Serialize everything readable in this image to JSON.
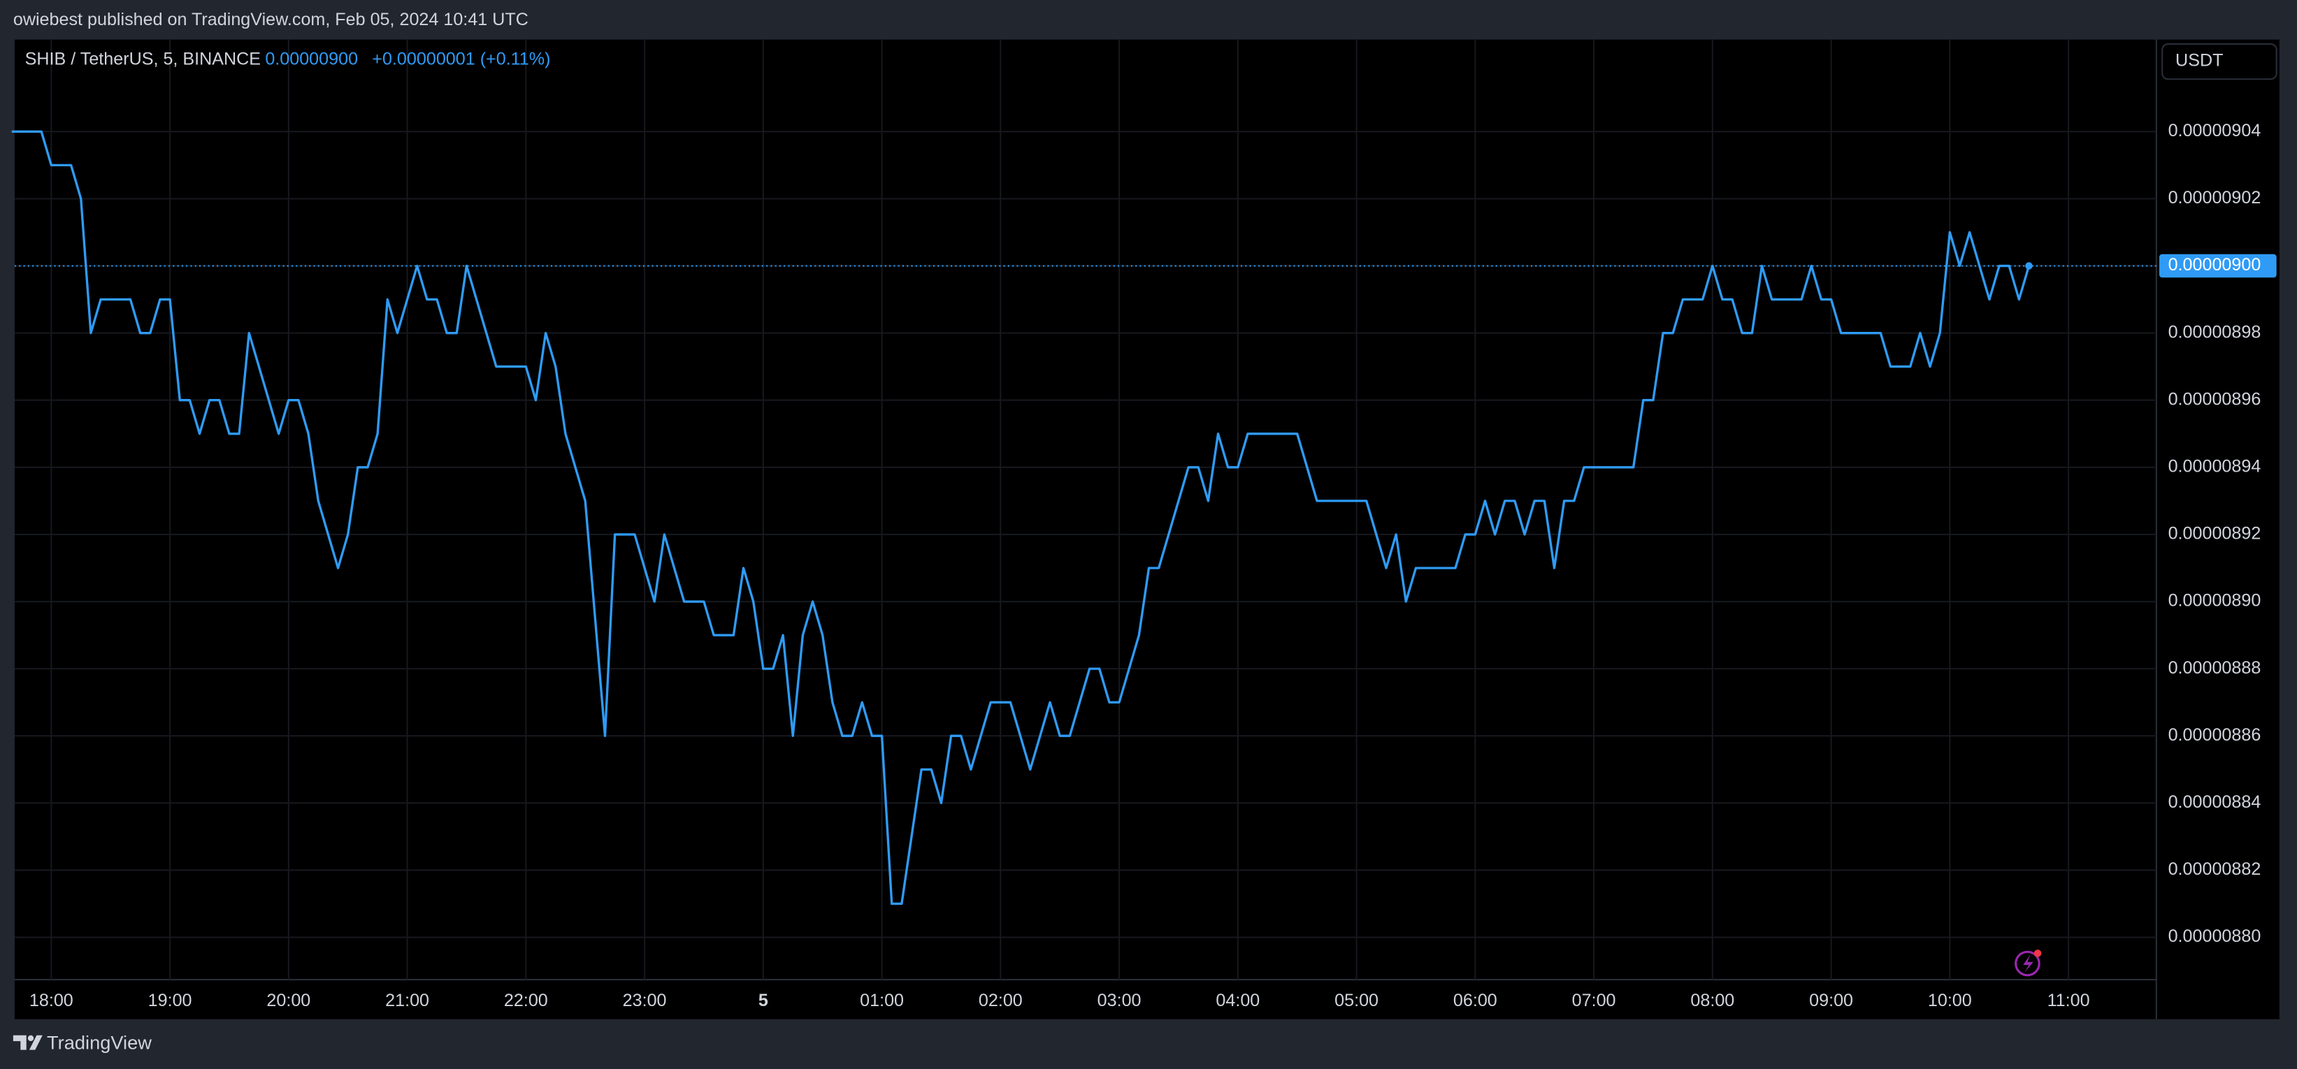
{
  "header": "owiebest published on TradingView.com, Feb 05, 2024 10:41 UTC",
  "footer": "TradingView",
  "currency": "USDT",
  "chart_data": {
    "type": "line",
    "title": "SHIB / TetherUS, 5, BINANCE",
    "last_price": {
      "value": 9e-06,
      "label": "0.00000900"
    },
    "change": "+0.00000001 (+0.11%)",
    "color": "#2f9bf6",
    "x": [
      "17:40",
      "17:55",
      "18:00",
      "18:10",
      "18:15",
      "18:20",
      "18:25",
      "18:40",
      "18:45",
      "18:50",
      "18:55",
      "19:00",
      "19:05",
      "19:10",
      "19:15",
      "19:20",
      "19:25",
      "19:30",
      "19:35",
      "19:40",
      "19:55",
      "20:00",
      "20:05",
      "20:10",
      "20:15",
      "20:25",
      "20:30",
      "20:35",
      "20:40",
      "20:45",
      "20:50",
      "20:55",
      "21:05",
      "21:10",
      "21:15",
      "21:20",
      "21:25",
      "21:30",
      "21:45",
      "22:00",
      "22:05",
      "22:10",
      "22:15",
      "22:20",
      "22:30",
      "22:40",
      "22:45",
      "22:55",
      "23:05",
      "23:10",
      "23:20",
      "23:30",
      "23:35",
      "23:45",
      "23:50",
      "23:55",
      "00:00",
      "00:05",
      "00:10",
      "00:15",
      "00:20",
      "00:25",
      "00:30",
      "00:35",
      "00:40",
      "00:45",
      "00:50",
      "00:55",
      "01:00",
      "01:05",
      "01:10",
      "01:20",
      "01:25",
      "01:30",
      "01:35",
      "01:40",
      "01:45",
      "01:55",
      "02:05",
      "02:15",
      "02:25",
      "02:30",
      "02:35",
      "02:45",
      "02:50",
      "02:55",
      "03:00",
      "03:10",
      "03:15",
      "03:20",
      "03:35",
      "03:40",
      "03:45",
      "03:50",
      "03:55",
      "04:00",
      "04:05",
      "04:30",
      "04:40",
      "05:05",
      "05:15",
      "05:20",
      "05:25",
      "05:30",
      "05:50",
      "05:55",
      "06:00",
      "06:05",
      "06:10",
      "06:15",
      "06:20",
      "06:25",
      "06:30",
      "06:35",
      "06:40",
      "06:45",
      "06:50",
      "06:55",
      "07:20",
      "07:25",
      "07:30",
      "07:35",
      "07:40",
      "07:45",
      "07:55",
      "08:00",
      "08:05",
      "08:10",
      "08:15",
      "08:20",
      "08:25",
      "08:30",
      "08:45",
      "08:50",
      "08:55",
      "09:00",
      "09:05",
      "09:25",
      "09:30",
      "09:40",
      "09:45",
      "09:50",
      "09:55",
      "10:00",
      "10:05",
      "10:10",
      "10:20",
      "10:25",
      "10:30",
      "10:35",
      "10:40"
    ],
    "values": [
      9.04e-06,
      9.04e-06,
      9.03e-06,
      9.03e-06,
      9.02e-06,
      8.98e-06,
      8.99e-06,
      8.99e-06,
      8.98e-06,
      8.98e-06,
      8.99e-06,
      8.99e-06,
      8.96e-06,
      8.96e-06,
      8.95e-06,
      8.96e-06,
      8.96e-06,
      8.95e-06,
      8.95e-06,
      8.98e-06,
      8.95e-06,
      8.96e-06,
      8.96e-06,
      8.95e-06,
      8.93e-06,
      8.91e-06,
      8.92e-06,
      8.94e-06,
      8.94e-06,
      8.95e-06,
      8.99e-06,
      8.98e-06,
      9e-06,
      8.99e-06,
      8.99e-06,
      8.98e-06,
      8.98e-06,
      9e-06,
      8.97e-06,
      8.97e-06,
      8.96e-06,
      8.98e-06,
      8.97e-06,
      8.95e-06,
      8.93e-06,
      8.86e-06,
      8.92e-06,
      8.92e-06,
      8.9e-06,
      8.92e-06,
      8.9e-06,
      8.9e-06,
      8.89e-06,
      8.89e-06,
      8.91e-06,
      8.9e-06,
      8.88e-06,
      8.88e-06,
      8.89e-06,
      8.86e-06,
      8.89e-06,
      8.9e-06,
      8.89e-06,
      8.87e-06,
      8.86e-06,
      8.86e-06,
      8.87e-06,
      8.86e-06,
      8.86e-06,
      8.81e-06,
      8.81e-06,
      8.85e-06,
      8.85e-06,
      8.84e-06,
      8.86e-06,
      8.86e-06,
      8.85e-06,
      8.87e-06,
      8.87e-06,
      8.85e-06,
      8.87e-06,
      8.86e-06,
      8.86e-06,
      8.88e-06,
      8.88e-06,
      8.87e-06,
      8.87e-06,
      8.89e-06,
      8.91e-06,
      8.91e-06,
      8.94e-06,
      8.94e-06,
      8.93e-06,
      8.95e-06,
      8.94e-06,
      8.94e-06,
      8.95e-06,
      8.95e-06,
      8.93e-06,
      8.93e-06,
      8.91e-06,
      8.92e-06,
      8.9e-06,
      8.91e-06,
      8.91e-06,
      8.92e-06,
      8.92e-06,
      8.93e-06,
      8.92e-06,
      8.93e-06,
      8.93e-06,
      8.92e-06,
      8.93e-06,
      8.93e-06,
      8.91e-06,
      8.93e-06,
      8.93e-06,
      8.94e-06,
      8.94e-06,
      8.96e-06,
      8.96e-06,
      8.98e-06,
      8.98e-06,
      8.99e-06,
      8.99e-06,
      9e-06,
      8.99e-06,
      8.99e-06,
      8.98e-06,
      8.98e-06,
      9e-06,
      8.99e-06,
      8.99e-06,
      9e-06,
      8.99e-06,
      8.99e-06,
      8.98e-06,
      8.98e-06,
      8.97e-06,
      8.97e-06,
      8.98e-06,
      8.97e-06,
      8.98e-06,
      9.01e-06,
      9e-06,
      9.01e-06,
      8.99e-06,
      9e-06,
      9e-06,
      8.99e-06,
      9e-06
    ],
    "xlim": [
      "17:40",
      "11:45"
    ],
    "xticks": [
      "18:00",
      "19:00",
      "20:00",
      "21:00",
      "22:00",
      "23:00",
      {
        "value": "00:00",
        "label": "5"
      },
      "01:00",
      "02:00",
      "03:00",
      "04:00",
      "05:00",
      "06:00",
      "07:00",
      "08:00",
      "09:00",
      "10:00",
      "11:00"
    ],
    "ylim": [
      8.7874e-06,
      9.0674e-06
    ],
    "yticks": [
      {
        "value": 8.8e-06,
        "label": "0.00000880"
      },
      {
        "value": 8.82e-06,
        "label": "0.00000882"
      },
      {
        "value": 8.84e-06,
        "label": "0.00000884"
      },
      {
        "value": 8.86e-06,
        "label": "0.00000886"
      },
      {
        "value": 8.88e-06,
        "label": "0.00000888"
      },
      {
        "value": 8.9e-06,
        "label": "0.00000890"
      },
      {
        "value": 8.92e-06,
        "label": "0.00000892"
      },
      {
        "value": 8.94e-06,
        "label": "0.00000894"
      },
      {
        "value": 8.96e-06,
        "label": "0.00000896"
      },
      {
        "value": 8.98e-06,
        "label": "0.00000898"
      },
      {
        "value": 9e-06,
        "label": "0.00000900"
      },
      {
        "value": 9.02e-06,
        "label": "0.00000902"
      },
      {
        "value": 9.04e-06,
        "label": "0.00000904"
      }
    ],
    "grid": true
  }
}
